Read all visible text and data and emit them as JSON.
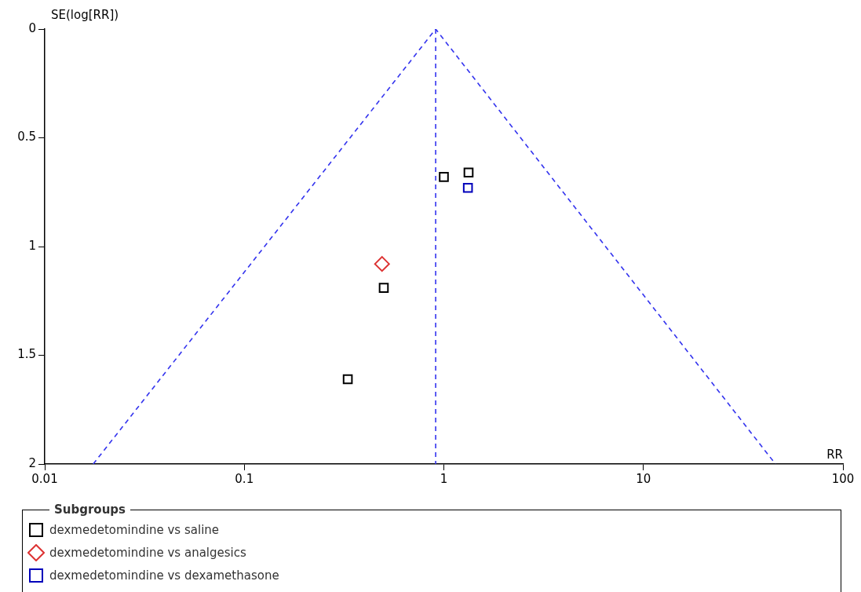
{
  "chart_data": {
    "type": "scatter",
    "xlabel": "RR",
    "ylabel": "SE(log[RR])",
    "legend_title": "Subgroups",
    "log": "x",
    "xlim": [
      0.01,
      100
    ],
    "xticks": [
      0.01,
      0.1,
      1,
      10,
      100
    ],
    "ylim": [
      2,
      0
    ],
    "yticks": [
      0,
      0.5,
      1,
      1.5,
      2
    ],
    "grid": false,
    "legend": "bottom",
    "series": [
      {
        "name": "dexmedetomindine vs saline",
        "color": "#000000",
        "marker": "square",
        "x": [
          1.0,
          1.33,
          0.5,
          0.33
        ],
        "values": [
          0.68,
          0.66,
          1.19,
          1.61
        ]
      },
      {
        "name": "dexmedetomindine vs analgesics",
        "color": "#dd3333",
        "marker": "diamond",
        "x": [
          0.49
        ],
        "values": [
          1.08
        ]
      },
      {
        "name": "dexmedetomindine vs dexamethasone",
        "color": "#0000bb",
        "marker": "square",
        "x": [
          1.32
        ],
        "values": [
          0.73
        ]
      },
      {
        "type": "line",
        "color": "#3333ee",
        "marker": "none",
        "line_style": "dashed",
        "x": [
          0.0175,
          0.91,
          45.9
        ],
        "values": [
          2,
          0,
          2
        ]
      }
    ],
    "ref_lines": [
      {
        "axis": "x",
        "value": 0.91,
        "color": "#3333ee",
        "line_style": "dashed"
      }
    ]
  }
}
